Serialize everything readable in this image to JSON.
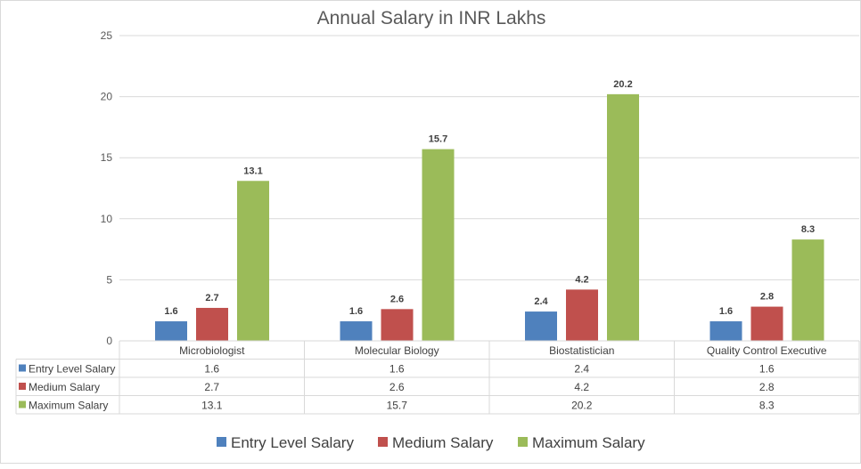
{
  "chart_data": {
    "type": "bar",
    "title": "Annual Salary in INR Lakhs",
    "xlabel": "",
    "ylabel": "",
    "ylim": [
      0,
      25
    ],
    "yticks": [
      0,
      5,
      10,
      15,
      20,
      25
    ],
    "grid": true,
    "legend_position": "bottom",
    "data_table": true,
    "categories": [
      "Microbiologist",
      "Molecular Biology",
      "Biostatistician",
      "Quality Control Executive"
    ],
    "series": [
      {
        "name": "Entry Level Salary",
        "color": "#4F81BD",
        "values": [
          1.6,
          1.6,
          2.4,
          1.6
        ]
      },
      {
        "name": "Medium Salary",
        "color": "#C0504D",
        "values": [
          2.7,
          2.6,
          4.2,
          2.8
        ]
      },
      {
        "name": "Maximum Salary",
        "color": "#9BBB59",
        "values": [
          13.1,
          15.7,
          20.2,
          8.3
        ]
      }
    ]
  }
}
